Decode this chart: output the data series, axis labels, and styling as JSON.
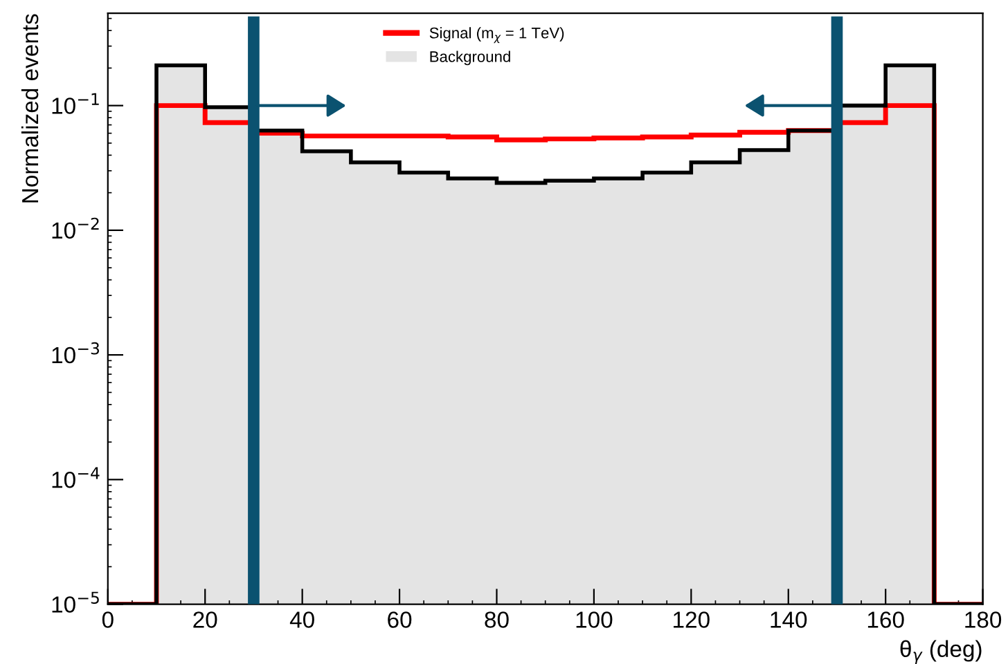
{
  "chart_data": {
    "type": "histogram",
    "xlabel": "θ$_{γ}$ (deg)",
    "ylabel": "Normalized events",
    "bins": [
      0,
      10,
      20,
      30,
      40,
      50,
      60,
      70,
      80,
      90,
      100,
      110,
      120,
      130,
      140,
      150,
      160,
      170,
      180
    ],
    "series": [
      {
        "name": "Signal (m$_{χ}$ = 1 TeV)",
        "color": "#ff0000",
        "values": [
          1e-05,
          0.1,
          0.073,
          0.06,
          0.057,
          0.057,
          0.057,
          0.056,
          0.053,
          0.054,
          0.055,
          0.056,
          0.058,
          0.061,
          0.063,
          0.073,
          0.1,
          1e-05
        ]
      },
      {
        "name": "Background",
        "color": "#e4e4e4",
        "values": [
          1e-05,
          0.21,
          0.097,
          0.063,
          0.043,
          0.035,
          0.029,
          0.026,
          0.024,
          0.025,
          0.026,
          0.029,
          0.035,
          0.044,
          0.063,
          0.1,
          0.21,
          1e-05
        ]
      }
    ],
    "log": "y",
    "xlim": [
      0,
      180
    ],
    "ylim": [
      1e-05,
      0.55
    ],
    "xticks": [
      0,
      20,
      40,
      60,
      80,
      100,
      120,
      140,
      160,
      180
    ],
    "yticks": [
      {
        "value": 1e-05,
        "label": "10$^{−5}$"
      },
      {
        "value": 0.0001,
        "label": "10$^{−4}$"
      },
      {
        "value": 0.001,
        "label": "10$^{−3}$"
      },
      {
        "value": 0.01,
        "label": "10$^{−2}$"
      },
      {
        "value": 0.1,
        "label": "10$^{−1}$"
      }
    ],
    "ref_lines": [
      {
        "axis": "x",
        "value": 30,
        "color": "#0b5270"
      },
      {
        "axis": "x",
        "value": 150,
        "color": "#0b5270"
      }
    ],
    "legend": "top",
    "grid": false
  }
}
